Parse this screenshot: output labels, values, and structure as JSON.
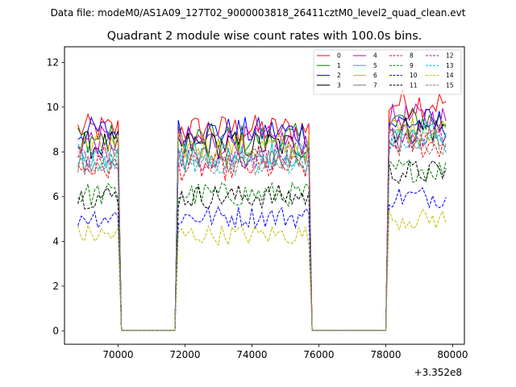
{
  "figure": {
    "suptitle": "Data file: modeM0/AS1A09_127T02_9000003818_26411cztM0_level2_quad_clean.evt"
  },
  "chart_data": {
    "type": "line",
    "title": "Quadrant 2 module wise count rates with 100.0s bins.",
    "xlabel": "",
    "ylabel": "",
    "x_offset_label": "+3.352e8",
    "xlim": [
      68400,
      80350
    ],
    "ylim": [
      -0.6,
      12.7
    ],
    "x_ticks": [
      70000,
      72000,
      74000,
      76000,
      78000,
      80000
    ],
    "x_tick_labels": [
      "70000",
      "72000",
      "74000",
      "76000",
      "78000",
      "80000"
    ],
    "y_ticks": [
      0,
      2,
      4,
      6,
      8,
      10,
      12
    ],
    "y_tick_labels": [
      "0",
      "2",
      "4",
      "6",
      "8",
      "10",
      "12"
    ],
    "legend_position": "top-right",
    "legend_columns": 4,
    "time_axis": {
      "start": 68800,
      "step": 100,
      "count": 111,
      "gaps": [
        [
          70000,
          71800
        ],
        [
          75700,
          78100
        ]
      ],
      "gap_rate": 0.02
    },
    "series": [
      {
        "name": "0",
        "color": "#ff0000",
        "style": "solid",
        "mean": 9.0,
        "end_mean": 10.2
      },
      {
        "name": "1",
        "color": "#008000",
        "style": "solid",
        "mean": 8.6,
        "end_mean": 9.4
      },
      {
        "name": "2",
        "color": "#0000ff",
        "style": "solid",
        "mean": 8.9,
        "end_mean": 9.3
      },
      {
        "name": "3",
        "color": "#000000",
        "style": "solid",
        "mean": 8.3,
        "end_mean": 9.0
      },
      {
        "name": "4",
        "color": "#bf00bf",
        "style": "solid",
        "mean": 8.5,
        "end_mean": 9.5
      },
      {
        "name": "5",
        "color": "#00bfbf",
        "style": "solid",
        "mean": 7.9,
        "end_mean": 8.8
      },
      {
        "name": "6",
        "color": "#bfbf00",
        "style": "solid",
        "mean": 8.2,
        "end_mean": 9.0
      },
      {
        "name": "7",
        "color": "#808080",
        "style": "solid",
        "mean": 7.7,
        "end_mean": 8.6
      },
      {
        "name": "8",
        "color": "#ff0000",
        "style": "dashed",
        "mean": 7.3,
        "end_mean": 8.3
      },
      {
        "name": "9",
        "color": "#008000",
        "style": "dashed",
        "mean": 6.1,
        "end_mean": 7.2
      },
      {
        "name": "10",
        "color": "#0000ff",
        "style": "dashed",
        "mean": 5.1,
        "end_mean": 6.0
      },
      {
        "name": "11",
        "color": "#000000",
        "style": "dashed",
        "mean": 6.0,
        "end_mean": 7.1
      },
      {
        "name": "12",
        "color": "#bf00bf",
        "style": "dashed",
        "mean": 7.8,
        "end_mean": 8.7
      },
      {
        "name": "13",
        "color": "#00bfbf",
        "style": "dashed",
        "mean": 7.6,
        "end_mean": 8.5
      },
      {
        "name": "14",
        "color": "#bfbf00",
        "style": "dashed",
        "mean": 4.3,
        "end_mean": 5.0
      },
      {
        "name": "15",
        "color": "#808080",
        "style": "dashed",
        "mean": 7.5,
        "end_mean": 8.4
      }
    ]
  }
}
